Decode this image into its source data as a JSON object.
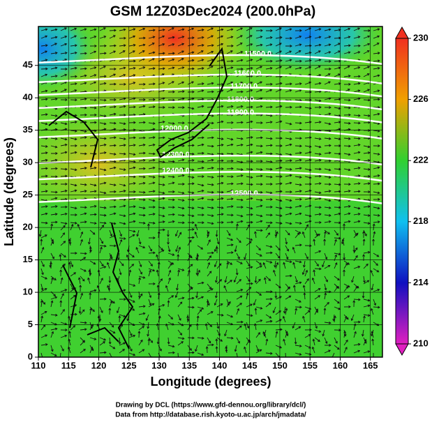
{
  "chart_data": {
    "type": "map",
    "title": "GSM 12Z03Dec2024 (200.0hPa)",
    "xlabel": "Longitude (degrees)",
    "ylabel": "Latitude  (degrees)",
    "xlim": [
      110,
      167
    ],
    "ylim": [
      0,
      51
    ],
    "xticks": [
      110,
      115,
      120,
      125,
      130,
      135,
      140,
      145,
      150,
      155,
      160,
      165
    ],
    "yticks": [
      0,
      5,
      10,
      15,
      20,
      25,
      30,
      35,
      40,
      45
    ],
    "grid": true,
    "colorbar": {
      "lim": [
        210,
        230
      ],
      "ticks": [
        210,
        214,
        218,
        222,
        226,
        230
      ],
      "colors": [
        "#e020c0",
        "#1010c0",
        "#10c0f0",
        "#30d030",
        "#f0a000",
        "#f03020"
      ]
    },
    "contour_labels": [
      "11500.0",
      "11600.0",
      "11700.0",
      "11800.0",
      "11900.0",
      "12000.0",
      "12300.0",
      "12400.0",
      "12500.0"
    ],
    "credits": [
      "Drawing by DCL (https://www.gfd-dennou.org/library/dcl/)",
      "Data from http://database.rish.kyoto-u.ac.jp/arch/jmadata/"
    ]
  }
}
